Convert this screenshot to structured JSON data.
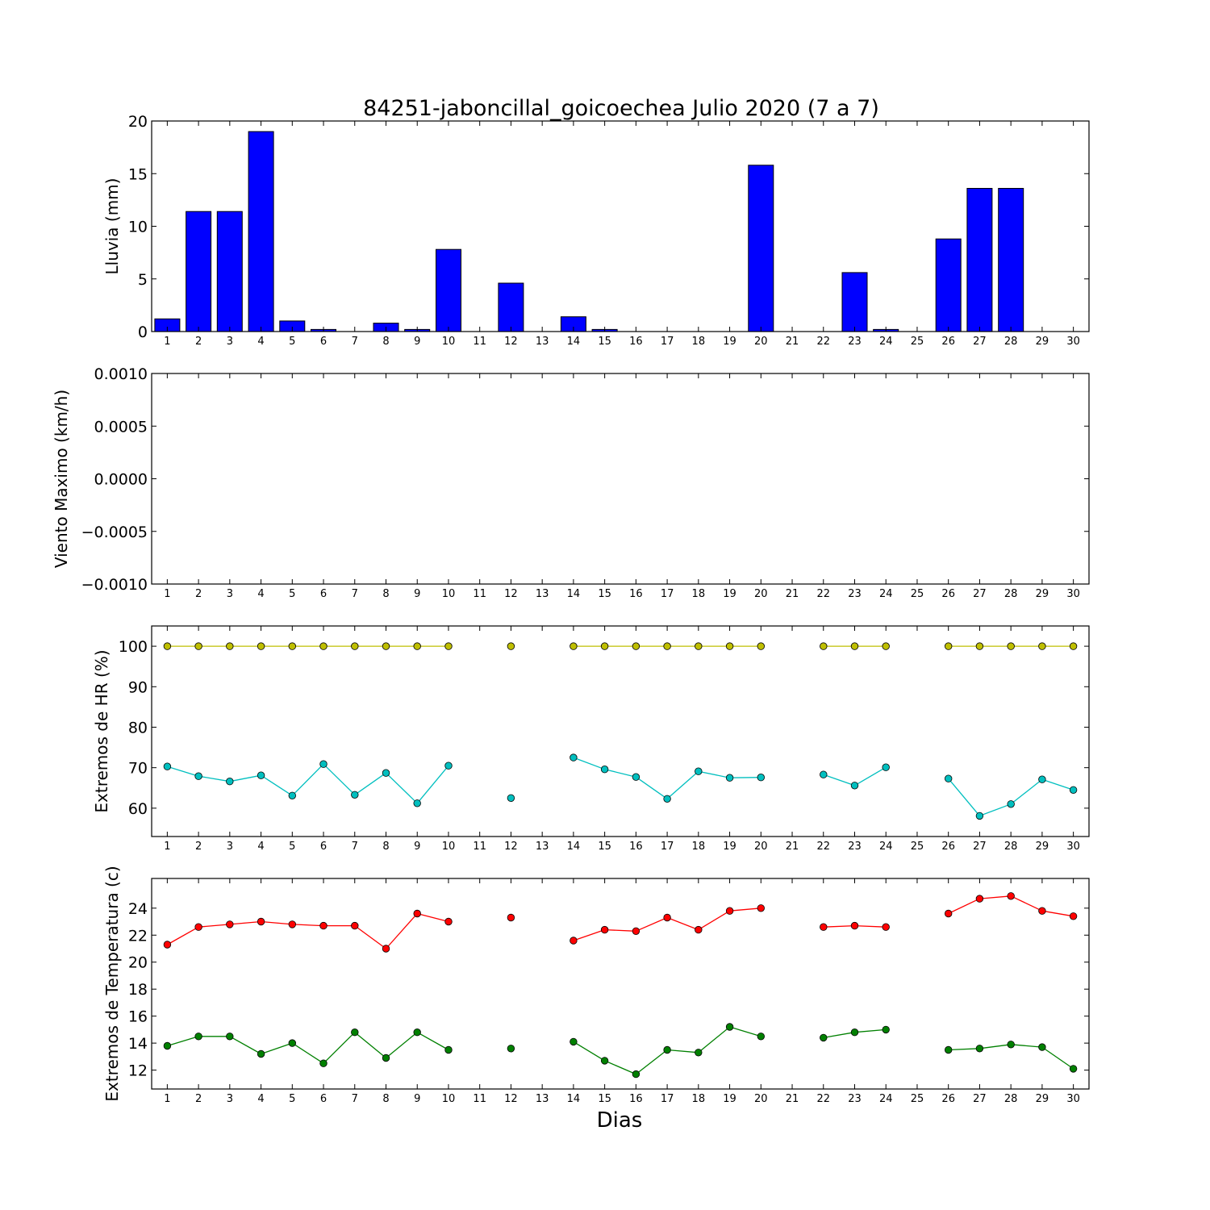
{
  "title": "84251-jaboncillal_goicoechea Julio 2020  (7 a 7)",
  "xlabel": "Dias",
  "colors": {
    "rain": "#0000ff",
    "hr_max": "#bfbf00",
    "hr_min": "#00bfbf",
    "temp_max": "#ff0000",
    "temp_min": "#008000"
  },
  "chart_data": [
    {
      "type": "bar",
      "ylabel": "Lluvia (mm)",
      "ylim": [
        0,
        20
      ],
      "yticks": [
        "0",
        "5",
        "10",
        "15",
        "20"
      ],
      "xticks": [
        1,
        2,
        3,
        4,
        5,
        6,
        7,
        8,
        9,
        10,
        11,
        12,
        13,
        14,
        15,
        16,
        17,
        18,
        19,
        20,
        21,
        22,
        23,
        24,
        25,
        26,
        27,
        28,
        29,
        30
      ],
      "series": [
        {
          "x": [
            1,
            2,
            3,
            4,
            5,
            6,
            7,
            8,
            9,
            10,
            11,
            12,
            13,
            14,
            15,
            16,
            17,
            18,
            19,
            20,
            21,
            22,
            23,
            24,
            25,
            26,
            27,
            28,
            29,
            30
          ],
          "values": [
            1.2,
            11.4,
            11.4,
            19.0,
            1.0,
            0.2,
            0,
            0.8,
            0.2,
            7.8,
            0,
            4.6,
            0,
            1.4,
            0.2,
            0,
            0,
            0,
            0,
            15.8,
            0,
            0,
            5.6,
            0.2,
            0,
            8.8,
            13.6,
            13.6,
            0,
            0
          ]
        }
      ]
    },
    {
      "type": "line",
      "ylabel": "Viento Maximo (km/h)",
      "ylim": [
        -0.001,
        0.001
      ],
      "yticks": [
        "−0.0010",
        "−0.0005",
        "0.0000",
        "0.0005",
        "0.0010"
      ],
      "xticks": [
        1,
        2,
        3,
        4,
        5,
        6,
        7,
        8,
        9,
        10,
        11,
        12,
        13,
        14,
        15,
        16,
        17,
        18,
        19,
        20,
        21,
        22,
        23,
        24,
        25,
        26,
        27,
        28,
        29,
        30
      ],
      "series": []
    },
    {
      "type": "line",
      "ylabel": "Extremos de HR (%)",
      "ylim": [
        53,
        105
      ],
      "yticks": [
        "60",
        "70",
        "80",
        "90",
        "100"
      ],
      "xticks": [
        1,
        2,
        3,
        4,
        5,
        6,
        7,
        8,
        9,
        10,
        11,
        12,
        13,
        14,
        15,
        16,
        17,
        18,
        19,
        20,
        21,
        22,
        23,
        24,
        25,
        26,
        27,
        28,
        29,
        30
      ],
      "series": [
        {
          "color_key": "hr_max",
          "x": [
            1,
            2,
            3,
            4,
            5,
            6,
            7,
            8,
            9,
            10,
            11,
            12,
            13,
            14,
            15,
            16,
            17,
            18,
            19,
            20,
            21,
            22,
            23,
            24,
            25,
            26,
            27,
            28,
            29,
            30
          ],
          "values": [
            100,
            100,
            100,
            100,
            100,
            100,
            100,
            100,
            100,
            100,
            null,
            100,
            null,
            100,
            100,
            100,
            100,
            100,
            100,
            100,
            null,
            100,
            100,
            100,
            null,
            100,
            100,
            100,
            100,
            100
          ]
        },
        {
          "color_key": "hr_min",
          "x": [
            1,
            2,
            3,
            4,
            5,
            6,
            7,
            8,
            9,
            10,
            11,
            12,
            13,
            14,
            15,
            16,
            17,
            18,
            19,
            20,
            21,
            22,
            23,
            24,
            25,
            26,
            27,
            28,
            29,
            30
          ],
          "values": [
            70.3,
            67.9,
            66.6,
            68.1,
            63.1,
            70.9,
            63.3,
            68.7,
            61.2,
            70.5,
            null,
            62.5,
            null,
            72.5,
            69.6,
            67.7,
            62.3,
            69.1,
            67.5,
            67.6,
            null,
            68.3,
            65.6,
            70.1,
            null,
            67.3,
            58.1,
            61.0,
            67.1,
            64.5
          ]
        }
      ]
    },
    {
      "type": "line",
      "ylabel": "Extremos de Temperatura (c)",
      "ylim": [
        10.6,
        26.2
      ],
      "yticks": [
        "12",
        "14",
        "16",
        "18",
        "20",
        "22",
        "24"
      ],
      "xticks": [
        1,
        2,
        3,
        4,
        5,
        6,
        7,
        8,
        9,
        10,
        11,
        12,
        13,
        14,
        15,
        16,
        17,
        18,
        19,
        20,
        21,
        22,
        23,
        24,
        25,
        26,
        27,
        28,
        29,
        30
      ],
      "series": [
        {
          "color_key": "temp_max",
          "x": [
            1,
            2,
            3,
            4,
            5,
            6,
            7,
            8,
            9,
            10,
            11,
            12,
            13,
            14,
            15,
            16,
            17,
            18,
            19,
            20,
            21,
            22,
            23,
            24,
            25,
            26,
            27,
            28,
            29,
            30
          ],
          "values": [
            21.3,
            22.6,
            22.8,
            23.0,
            22.8,
            22.7,
            22.7,
            21.0,
            23.6,
            23.0,
            null,
            23.3,
            null,
            21.6,
            22.4,
            22.3,
            23.3,
            22.4,
            23.8,
            24.0,
            null,
            22.6,
            22.7,
            22.6,
            null,
            23.6,
            24.7,
            24.9,
            23.8,
            23.4
          ]
        },
        {
          "color_key": "temp_min",
          "x": [
            1,
            2,
            3,
            4,
            5,
            6,
            7,
            8,
            9,
            10,
            11,
            12,
            13,
            14,
            15,
            16,
            17,
            18,
            19,
            20,
            21,
            22,
            23,
            24,
            25,
            26,
            27,
            28,
            29,
            30
          ],
          "values": [
            13.8,
            14.5,
            14.5,
            13.2,
            14.0,
            12.5,
            14.8,
            12.9,
            14.8,
            13.5,
            null,
            13.6,
            null,
            14.1,
            12.7,
            11.7,
            13.5,
            13.3,
            15.2,
            14.5,
            null,
            14.4,
            14.8,
            15.0,
            null,
            13.5,
            13.6,
            13.9,
            13.7,
            12.1
          ]
        }
      ]
    }
  ]
}
